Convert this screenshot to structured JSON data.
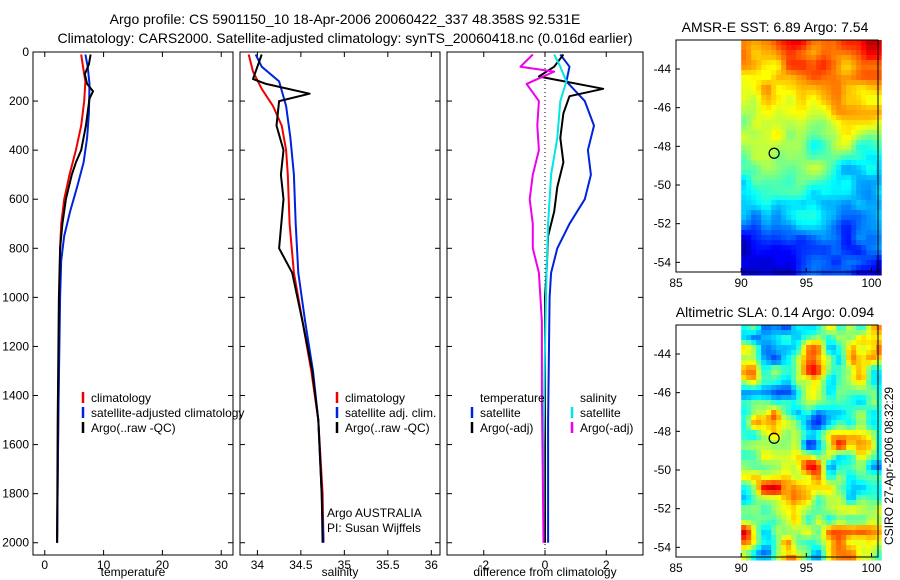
{
  "figure": {
    "title_line1": "Argo profile: CS 5901150_10 18-Apr-2006 20060422_337 48.358S 92.531E",
    "title_line2": "Climatology: CARS2000. Satellite-adjusted climatology: synTS_20060418.nc (0.016d earlier)",
    "credit": "CSIRO 27-Apr-2006 08:32:29"
  },
  "colors": {
    "climatology": "#ee0000",
    "satellite": "#0022dd",
    "argo": "#000000",
    "sat_diff": "#00e5e5",
    "argo_adj": "#ee00ee"
  },
  "chart_data": [
    {
      "id": "temperature",
      "type": "line",
      "xlabel": "temperature",
      "ylabel": "",
      "xlim": [
        -2,
        32
      ],
      "ylim": [
        2050,
        0
      ],
      "xticks": [
        0,
        10,
        20,
        30
      ],
      "yticks": [
        0,
        200,
        400,
        600,
        800,
        1000,
        1200,
        1400,
        1600,
        1800,
        2000
      ],
      "legend": {
        "placement": "lower-middle",
        "entries": [
          "climatology",
          "satellite-adjusted climatology",
          "Argo(..raw -QC)"
        ]
      },
      "series": [
        {
          "name": "climatology",
          "color_key": "climatology",
          "points": [
            [
              6.2,
              10
            ],
            [
              6.5,
              60
            ],
            [
              6.9,
              120
            ],
            [
              6.7,
              200
            ],
            [
              6.2,
              300
            ],
            [
              5.3,
              400
            ],
            [
              4.2,
              500
            ],
            [
              3.3,
              600
            ],
            [
              2.8,
              700
            ],
            [
              2.6,
              800
            ],
            [
              2.5,
              1000
            ],
            [
              2.3,
              1500
            ],
            [
              2.1,
              2000
            ]
          ]
        },
        {
          "name": "satellite-adjusted climatology",
          "color_key": "satellite",
          "points": [
            [
              6.9,
              10
            ],
            [
              7.3,
              60
            ],
            [
              7.6,
              130
            ],
            [
              7.5,
              250
            ],
            [
              7.2,
              350
            ],
            [
              6.6,
              450
            ],
            [
              5.5,
              550
            ],
            [
              4.3,
              650
            ],
            [
              3.3,
              750
            ],
            [
              2.8,
              850
            ],
            [
              2.6,
              1000
            ],
            [
              2.3,
              1500
            ],
            [
              2.1,
              2000
            ]
          ]
        },
        {
          "name": "Argo(..raw -QC)",
          "color_key": "argo",
          "points": [
            [
              7.8,
              10
            ],
            [
              7.5,
              50
            ],
            [
              6.8,
              90
            ],
            [
              7.2,
              130
            ],
            [
              8.2,
              160
            ],
            [
              7.6,
              190
            ],
            [
              7.0,
              300
            ],
            [
              6.2,
              400
            ],
            [
              5.3,
              450
            ],
            [
              4.6,
              500
            ],
            [
              3.6,
              600
            ],
            [
              3.0,
              700
            ],
            [
              2.6,
              800
            ],
            [
              2.5,
              900
            ],
            [
              2.4,
              1000
            ],
            [
              2.2,
              1500
            ],
            [
              2.1,
              2000
            ]
          ]
        }
      ]
    },
    {
      "id": "salinity",
      "type": "line",
      "xlabel": "salinity",
      "ylabel": "",
      "xlim": [
        33.8,
        36.1
      ],
      "ylim": [
        2050,
        0
      ],
      "xticks": [
        34,
        34.5,
        35,
        35.5,
        36
      ],
      "xtick_labels": [
        "34",
        "34.5",
        "35",
        "35.5",
        "36"
      ],
      "legend": {
        "placement": "lower-middle",
        "entries": [
          "climatology",
          "satellite adj. clim.",
          "Argo(..raw -QC)"
        ]
      },
      "annotations": [
        "Argo AUSTRALIA",
        "PI: Susan Wijffels"
      ],
      "series": [
        {
          "name": "climatology",
          "color_key": "climatology",
          "points": [
            [
              33.9,
              10
            ],
            [
              33.95,
              80
            ],
            [
              34.05,
              150
            ],
            [
              34.18,
              220
            ],
            [
              34.28,
              300
            ],
            [
              34.33,
              400
            ],
            [
              34.35,
              500
            ],
            [
              34.37,
              700
            ],
            [
              34.42,
              900
            ],
            [
              34.52,
              1100
            ],
            [
              34.62,
              1300
            ],
            [
              34.7,
              1500
            ],
            [
              34.75,
              1800
            ],
            [
              34.76,
              2000
            ]
          ]
        },
        {
          "name": "satellite adj. clim.",
          "color_key": "satellite",
          "points": [
            [
              33.98,
              10
            ],
            [
              34.05,
              60
            ],
            [
              34.25,
              120
            ],
            [
              34.33,
              220
            ],
            [
              34.38,
              350
            ],
            [
              34.42,
              500
            ],
            [
              34.44,
              700
            ],
            [
              34.47,
              900
            ],
            [
              34.55,
              1100
            ],
            [
              34.64,
              1300
            ],
            [
              34.7,
              1500
            ],
            [
              34.74,
              1800
            ],
            [
              34.76,
              2000
            ]
          ]
        },
        {
          "name": "Argo(..raw -QC)",
          "color_key": "argo",
          "points": [
            [
              34.05,
              10
            ],
            [
              34.0,
              60
            ],
            [
              33.95,
              110
            ],
            [
              34.1,
              130
            ],
            [
              34.6,
              170
            ],
            [
              34.25,
              200
            ],
            [
              34.22,
              300
            ],
            [
              34.3,
              400
            ],
            [
              34.27,
              500
            ],
            [
              34.3,
              600
            ],
            [
              34.25,
              800
            ],
            [
              34.4,
              900
            ],
            [
              34.52,
              1100
            ],
            [
              34.63,
              1300
            ],
            [
              34.7,
              1500
            ],
            [
              34.74,
              1800
            ],
            [
              34.75,
              2000
            ]
          ]
        }
      ]
    },
    {
      "id": "difference",
      "type": "line",
      "xlabel": "difference from climatology",
      "ylabel": "",
      "xlim": [
        -3.2,
        3.2
      ],
      "ylim": [
        2050,
        0
      ],
      "xticks": [
        -2,
        0,
        2
      ],
      "legend": {
        "placement": "lower-middle",
        "columns": [
          "temperature",
          "salinity"
        ],
        "entries": [
          "satellite",
          "Argo(-adj)",
          "satellite",
          "Argo(-adj)"
        ]
      },
      "series": [
        {
          "name": "temperature satellite",
          "color_key": "satellite",
          "points": [
            [
              0.5,
              10
            ],
            [
              0.8,
              60
            ],
            [
              0.7,
              120
            ],
            [
              1.3,
              200
            ],
            [
              1.6,
              300
            ],
            [
              1.4,
              400
            ],
            [
              1.5,
              500
            ],
            [
              1.3,
              600
            ],
            [
              0.8,
              700
            ],
            [
              0.4,
              800
            ],
            [
              0.2,
              900
            ],
            [
              0.15,
              1000
            ],
            [
              0.1,
              1500
            ],
            [
              0.1,
              2000
            ]
          ]
        },
        {
          "name": "temperature Argo(-adj)",
          "color_key": "argo",
          "points": [
            [
              0.6,
              10
            ],
            [
              0.3,
              60
            ],
            [
              -0.2,
              100
            ],
            [
              1.9,
              150
            ],
            [
              0.8,
              180
            ],
            [
              0.6,
              250
            ],
            [
              0.5,
              350
            ],
            [
              0.6,
              450
            ],
            [
              0.4,
              550
            ],
            [
              0.3,
              650
            ],
            [
              0.1,
              750
            ],
            [
              0.05,
              900
            ],
            [
              0.0,
              1000
            ],
            [
              0.0,
              1500
            ],
            [
              0.0,
              2000
            ]
          ]
        },
        {
          "name": "salinity satellite",
          "color_key": "sat_diff",
          "points": [
            [
              0.3,
              10
            ],
            [
              0.5,
              60
            ],
            [
              0.7,
              120
            ],
            [
              0.5,
              200
            ],
            [
              0.4,
              350
            ],
            [
              0.2,
              500
            ],
            [
              0.1,
              700
            ],
            [
              0.05,
              900
            ],
            [
              0.0,
              1200
            ],
            [
              -0.05,
              1600
            ],
            [
              -0.05,
              2000
            ]
          ]
        },
        {
          "name": "salinity Argo(-adj)",
          "color_key": "argo_adj",
          "points": [
            [
              -0.4,
              10
            ],
            [
              -0.8,
              60
            ],
            [
              0.3,
              80
            ],
            [
              -0.6,
              130
            ],
            [
              -0.2,
              200
            ],
            [
              -0.25,
              300
            ],
            [
              -0.2,
              400
            ],
            [
              -0.4,
              500
            ],
            [
              -0.5,
              600
            ],
            [
              -0.4,
              700
            ],
            [
              -0.4,
              800
            ],
            [
              -0.2,
              900
            ],
            [
              -0.1,
              1100
            ],
            [
              -0.1,
              1400
            ],
            [
              -0.05,
              2000
            ]
          ]
        }
      ]
    },
    {
      "id": "sst_map",
      "type": "heatmap",
      "title": "AMSR-E SST: 6.89  Argo: 7.54",
      "xlim": [
        85,
        100.5
      ],
      "ylim": [
        -54.5,
        -42.5
      ],
      "xticks": [
        85,
        90,
        95,
        100
      ],
      "yticks": [
        -44,
        -46,
        -48,
        -50,
        -52,
        -54
      ],
      "data_xlim": [
        90,
        100
      ],
      "float_position": [
        92.531,
        -48.358
      ],
      "colorscale": "jet",
      "value_range": [
        0,
        12
      ]
    },
    {
      "id": "sla_map",
      "type": "heatmap",
      "title": "Altimetric SLA: 0.14  Argo: 0.094",
      "xlim": [
        85,
        100.5
      ],
      "ylim": [
        -54.5,
        -42.5
      ],
      "xticks": [
        85,
        90,
        95,
        100
      ],
      "yticks": [
        -44,
        -46,
        -48,
        -50,
        -52,
        -54
      ],
      "data_xlim": [
        90,
        100
      ],
      "float_position": [
        92.531,
        -48.358
      ],
      "colorscale": "jet",
      "value_range": [
        -0.3,
        0.3
      ]
    }
  ]
}
